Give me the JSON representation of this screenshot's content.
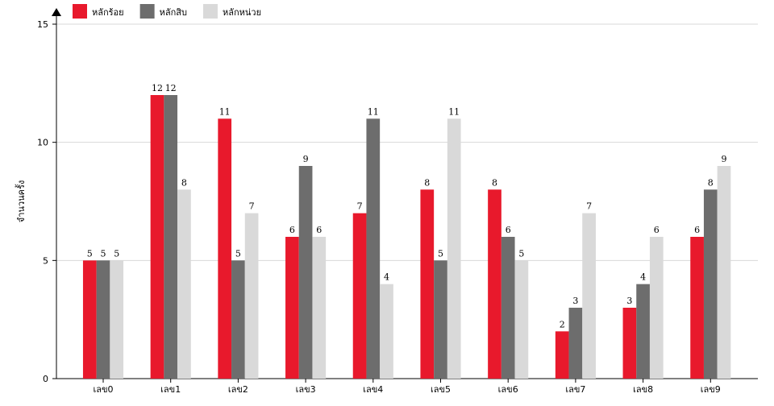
{
  "chart_data": {
    "type": "bar",
    "y_label": "จำนวนครั้ง",
    "categories": [
      "เลข0",
      "เลข1",
      "เลข2",
      "เลข3",
      "เลข4",
      "เลข5",
      "เลข6",
      "เลข7",
      "เลข8",
      "เลข9"
    ],
    "series": [
      {
        "name": "หลักร้อย",
        "color": "#e8192c",
        "values": [
          5,
          12,
          11,
          6,
          7,
          8,
          8,
          2,
          3,
          6
        ]
      },
      {
        "name": "หลักสิบ",
        "color": "#6d6d6d",
        "values": [
          5,
          12,
          5,
          9,
          11,
          5,
          6,
          3,
          4,
          8
        ]
      },
      {
        "name": "หลักหน่วย",
        "color": "#d9d9d9",
        "values": [
          5,
          8,
          7,
          6,
          4,
          11,
          5,
          7,
          6,
          9
        ]
      }
    ],
    "ylim": [
      0,
      15
    ],
    "yticks": [
      0,
      5,
      10,
      15
    ],
    "grid": true
  }
}
